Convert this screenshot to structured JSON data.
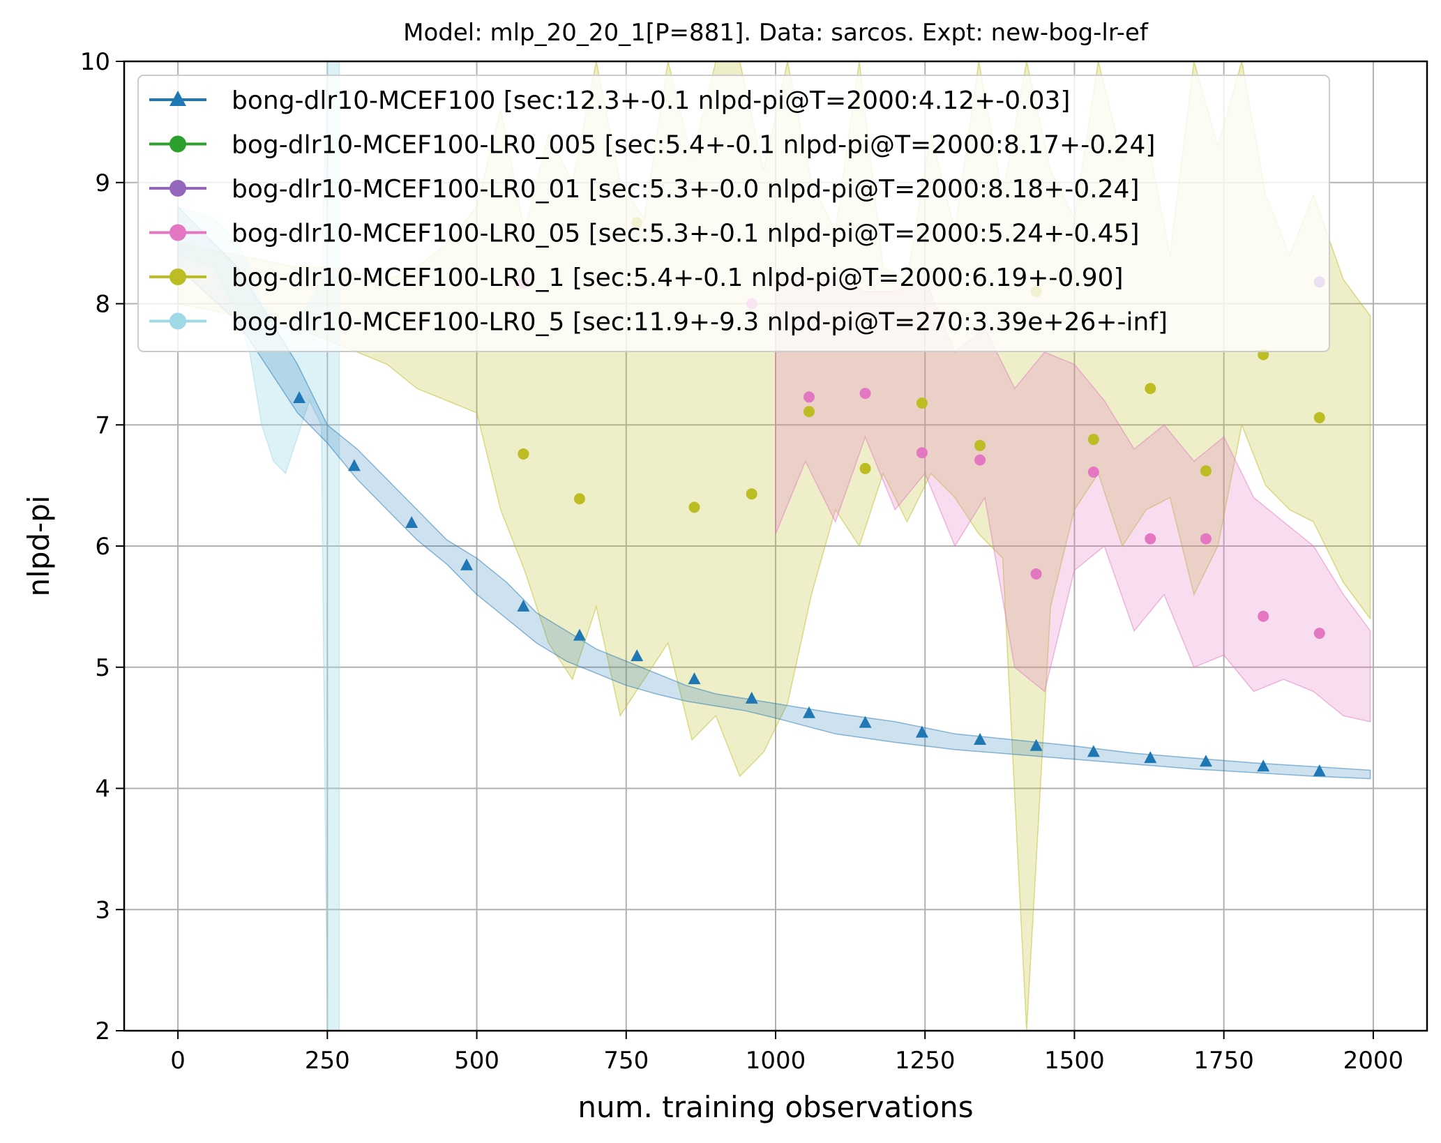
{
  "chart_data": {
    "type": "line",
    "title": "Model: mlp_20_20_1[P=881]. Data: sarcos. Expt: new-bog-lr-ef",
    "xlabel": "num. training observations",
    "ylabel": "nlpd-pi",
    "xlim": [
      -90,
      2090
    ],
    "ylim": [
      2,
      10
    ],
    "xticks": [
      0,
      250,
      500,
      750,
      1000,
      1250,
      1500,
      1750,
      2000
    ],
    "yticks": [
      2,
      3,
      4,
      5,
      6,
      7,
      8,
      9,
      10
    ],
    "grid": true,
    "legend_position": "upper-left",
    "series": [
      {
        "name": "bong-dlr10-MCEF100 [sec:12.3+-0.1 nlpd-pi@T=2000:4.12+-0.03]",
        "color": "#1f77b4",
        "marker": "triangle",
        "x": [
          203,
          295,
          391,
          483,
          578,
          672,
          768,
          864,
          960,
          1056,
          1150,
          1245,
          1342,
          1436,
          1532,
          1627,
          1720,
          1816,
          1910
        ],
        "y": [
          7.22,
          6.66,
          6.19,
          5.84,
          5.5,
          5.26,
          5.09,
          4.9,
          4.74,
          4.62,
          4.54,
          4.46,
          4.4,
          4.35,
          4.3,
          4.25,
          4.22,
          4.18,
          4.14
        ],
        "band_x": [
          0,
          100,
          200,
          250,
          300,
          350,
          400,
          450,
          500,
          550,
          600,
          650,
          700,
          750,
          800,
          850,
          900,
          950,
          1000,
          1100,
          1200,
          1300,
          1400,
          1500,
          1600,
          1700,
          1800,
          1900,
          1995
        ],
        "band_lo": [
          8.3,
          7.85,
          7.1,
          6.85,
          6.55,
          6.3,
          6.05,
          5.85,
          5.6,
          5.4,
          5.2,
          5.05,
          4.95,
          4.85,
          4.78,
          4.72,
          4.68,
          4.64,
          4.58,
          4.45,
          4.38,
          4.32,
          4.28,
          4.24,
          4.2,
          4.16,
          4.13,
          4.1,
          4.08
        ],
        "band_hi": [
          8.8,
          8.3,
          7.5,
          7.0,
          6.8,
          6.55,
          6.3,
          6.05,
          5.9,
          5.7,
          5.45,
          5.3,
          5.15,
          5.05,
          4.95,
          4.85,
          4.78,
          4.74,
          4.7,
          4.62,
          4.55,
          4.45,
          4.4,
          4.35,
          4.29,
          4.25,
          4.21,
          4.18,
          4.15
        ]
      },
      {
        "name": "bog-dlr10-MCEF100-LR0_005 [sec:5.4+-0.1 nlpd-pi@T=2000:8.17+-0.24]",
        "color": "#2ca02c",
        "marker": "circle",
        "x": [],
        "y": []
      },
      {
        "name": "bog-dlr10-MCEF100-LR0_01 [sec:5.3+-0.0 nlpd-pi@T=2000:8.18+-0.24]",
        "color": "#9467bd",
        "marker": "circle",
        "x": [
          1910
        ],
        "y": [
          8.18
        ]
      },
      {
        "name": "bog-dlr10-MCEF100-LR0_05 [sec:5.3+-0.1 nlpd-pi@T=2000:5.24+-0.45]",
        "color": "#e377c2",
        "marker": "circle",
        "x": [
          578,
          960,
          1056,
          1150,
          1245,
          1342,
          1436,
          1532,
          1627,
          1720,
          1816,
          1910
        ],
        "y": [
          8.17,
          8.0,
          7.23,
          7.26,
          6.77,
          6.71,
          5.77,
          6.61,
          6.06,
          6.06,
          5.42,
          5.28
        ],
        "band_x": [
          1000,
          1050,
          1100,
          1150,
          1200,
          1250,
          1300,
          1350,
          1400,
          1450,
          1500,
          1550,
          1600,
          1650,
          1700,
          1750,
          1800,
          1850,
          1900,
          1950,
          1995
        ],
        "band_lo": [
          6.1,
          6.7,
          6.2,
          6.9,
          6.3,
          6.6,
          6.0,
          6.4,
          5.0,
          4.8,
          5.8,
          6.0,
          5.3,
          5.6,
          5.0,
          5.1,
          4.8,
          4.9,
          4.8,
          4.6,
          4.55
        ],
        "band_hi": [
          8.2,
          8.2,
          8.2,
          8.1,
          8.1,
          8.2,
          7.6,
          7.8,
          7.3,
          7.6,
          7.5,
          7.2,
          6.8,
          7.0,
          6.7,
          6.9,
          6.4,
          6.2,
          6.0,
          5.6,
          5.3
        ]
      },
      {
        "name": "bog-dlr10-MCEF100-LR0_1 [sec:5.4+-0.1 nlpd-pi@T=2000:6.19+-0.90]",
        "color": "#bcbd22",
        "marker": "circle",
        "x": [
          578,
          672,
          768,
          864,
          960,
          1056,
          1150,
          1245,
          1342,
          1436,
          1532,
          1627,
          1720,
          1816,
          1910
        ],
        "y": [
          6.76,
          6.39,
          8.67,
          6.32,
          6.43,
          7.11,
          6.64,
          7.18,
          6.83,
          8.1,
          6.88,
          7.3,
          6.62,
          7.58,
          7.06
        ],
        "band_x": [
          0,
          100,
          200,
          250,
          300,
          350,
          400,
          450,
          500,
          540,
          580,
          620,
          660,
          700,
          740,
          780,
          820,
          860,
          900,
          940,
          980,
          1020,
          1060,
          1100,
          1140,
          1180,
          1220,
          1260,
          1300,
          1340,
          1380,
          1420,
          1460,
          1500,
          1540,
          1580,
          1620,
          1660,
          1700,
          1740,
          1780,
          1820,
          1860,
          1900,
          1950,
          1995
        ],
        "band_lo": [
          8.0,
          7.9,
          7.8,
          7.7,
          7.6,
          7.5,
          7.3,
          7.2,
          7.1,
          6.3,
          5.8,
          5.2,
          4.9,
          5.5,
          4.6,
          4.9,
          5.2,
          4.4,
          4.6,
          4.1,
          4.3,
          4.7,
          5.6,
          6.3,
          6.0,
          6.6,
          6.2,
          6.6,
          6.4,
          6.1,
          5.9,
          2.0,
          5.5,
          6.3,
          6.6,
          6.0,
          6.3,
          6.4,
          5.6,
          6.0,
          7.0,
          6.5,
          6.3,
          6.2,
          5.7,
          5.4
        ],
        "band_hi": [
          8.5,
          8.4,
          8.3,
          8.3,
          8.25,
          8.2,
          8.3,
          8.5,
          8.8,
          9.6,
          8.6,
          9.4,
          9.0,
          10.0,
          9.0,
          8.7,
          10.0,
          9.2,
          10.0,
          10.0,
          9.1,
          10.0,
          9.0,
          8.6,
          10.0,
          8.3,
          8.2,
          9.4,
          8.6,
          10.0,
          8.9,
          10.0,
          9.1,
          8.7,
          10.0,
          9.2,
          9.4,
          8.4,
          10.0,
          9.3,
          10.0,
          8.9,
          8.4,
          8.9,
          8.2,
          7.9
        ]
      },
      {
        "name": "bog-dlr10-MCEF100-LR0_5 [sec:11.9+-9.3 nlpd-pi@T=270:3.39e+26+-inf]",
        "color": "#9edae5",
        "marker": "circle",
        "x": [],
        "y": [],
        "band_x": [
          0,
          60,
          100,
          120,
          140,
          160,
          180,
          200,
          220,
          240,
          250,
          255,
          260,
          265,
          270
        ],
        "band_lo": [
          8.4,
          8.3,
          7.9,
          7.6,
          7.0,
          6.7,
          6.6,
          6.9,
          7.2,
          7.0,
          2.0,
          2.0,
          2.0,
          2.0,
          2.0
        ],
        "band_hi": [
          8.8,
          8.7,
          8.5,
          8.3,
          8.0,
          7.9,
          7.8,
          7.9,
          8.0,
          8.2,
          10.0,
          10.0,
          10.0,
          10.0,
          10.0
        ]
      }
    ]
  }
}
